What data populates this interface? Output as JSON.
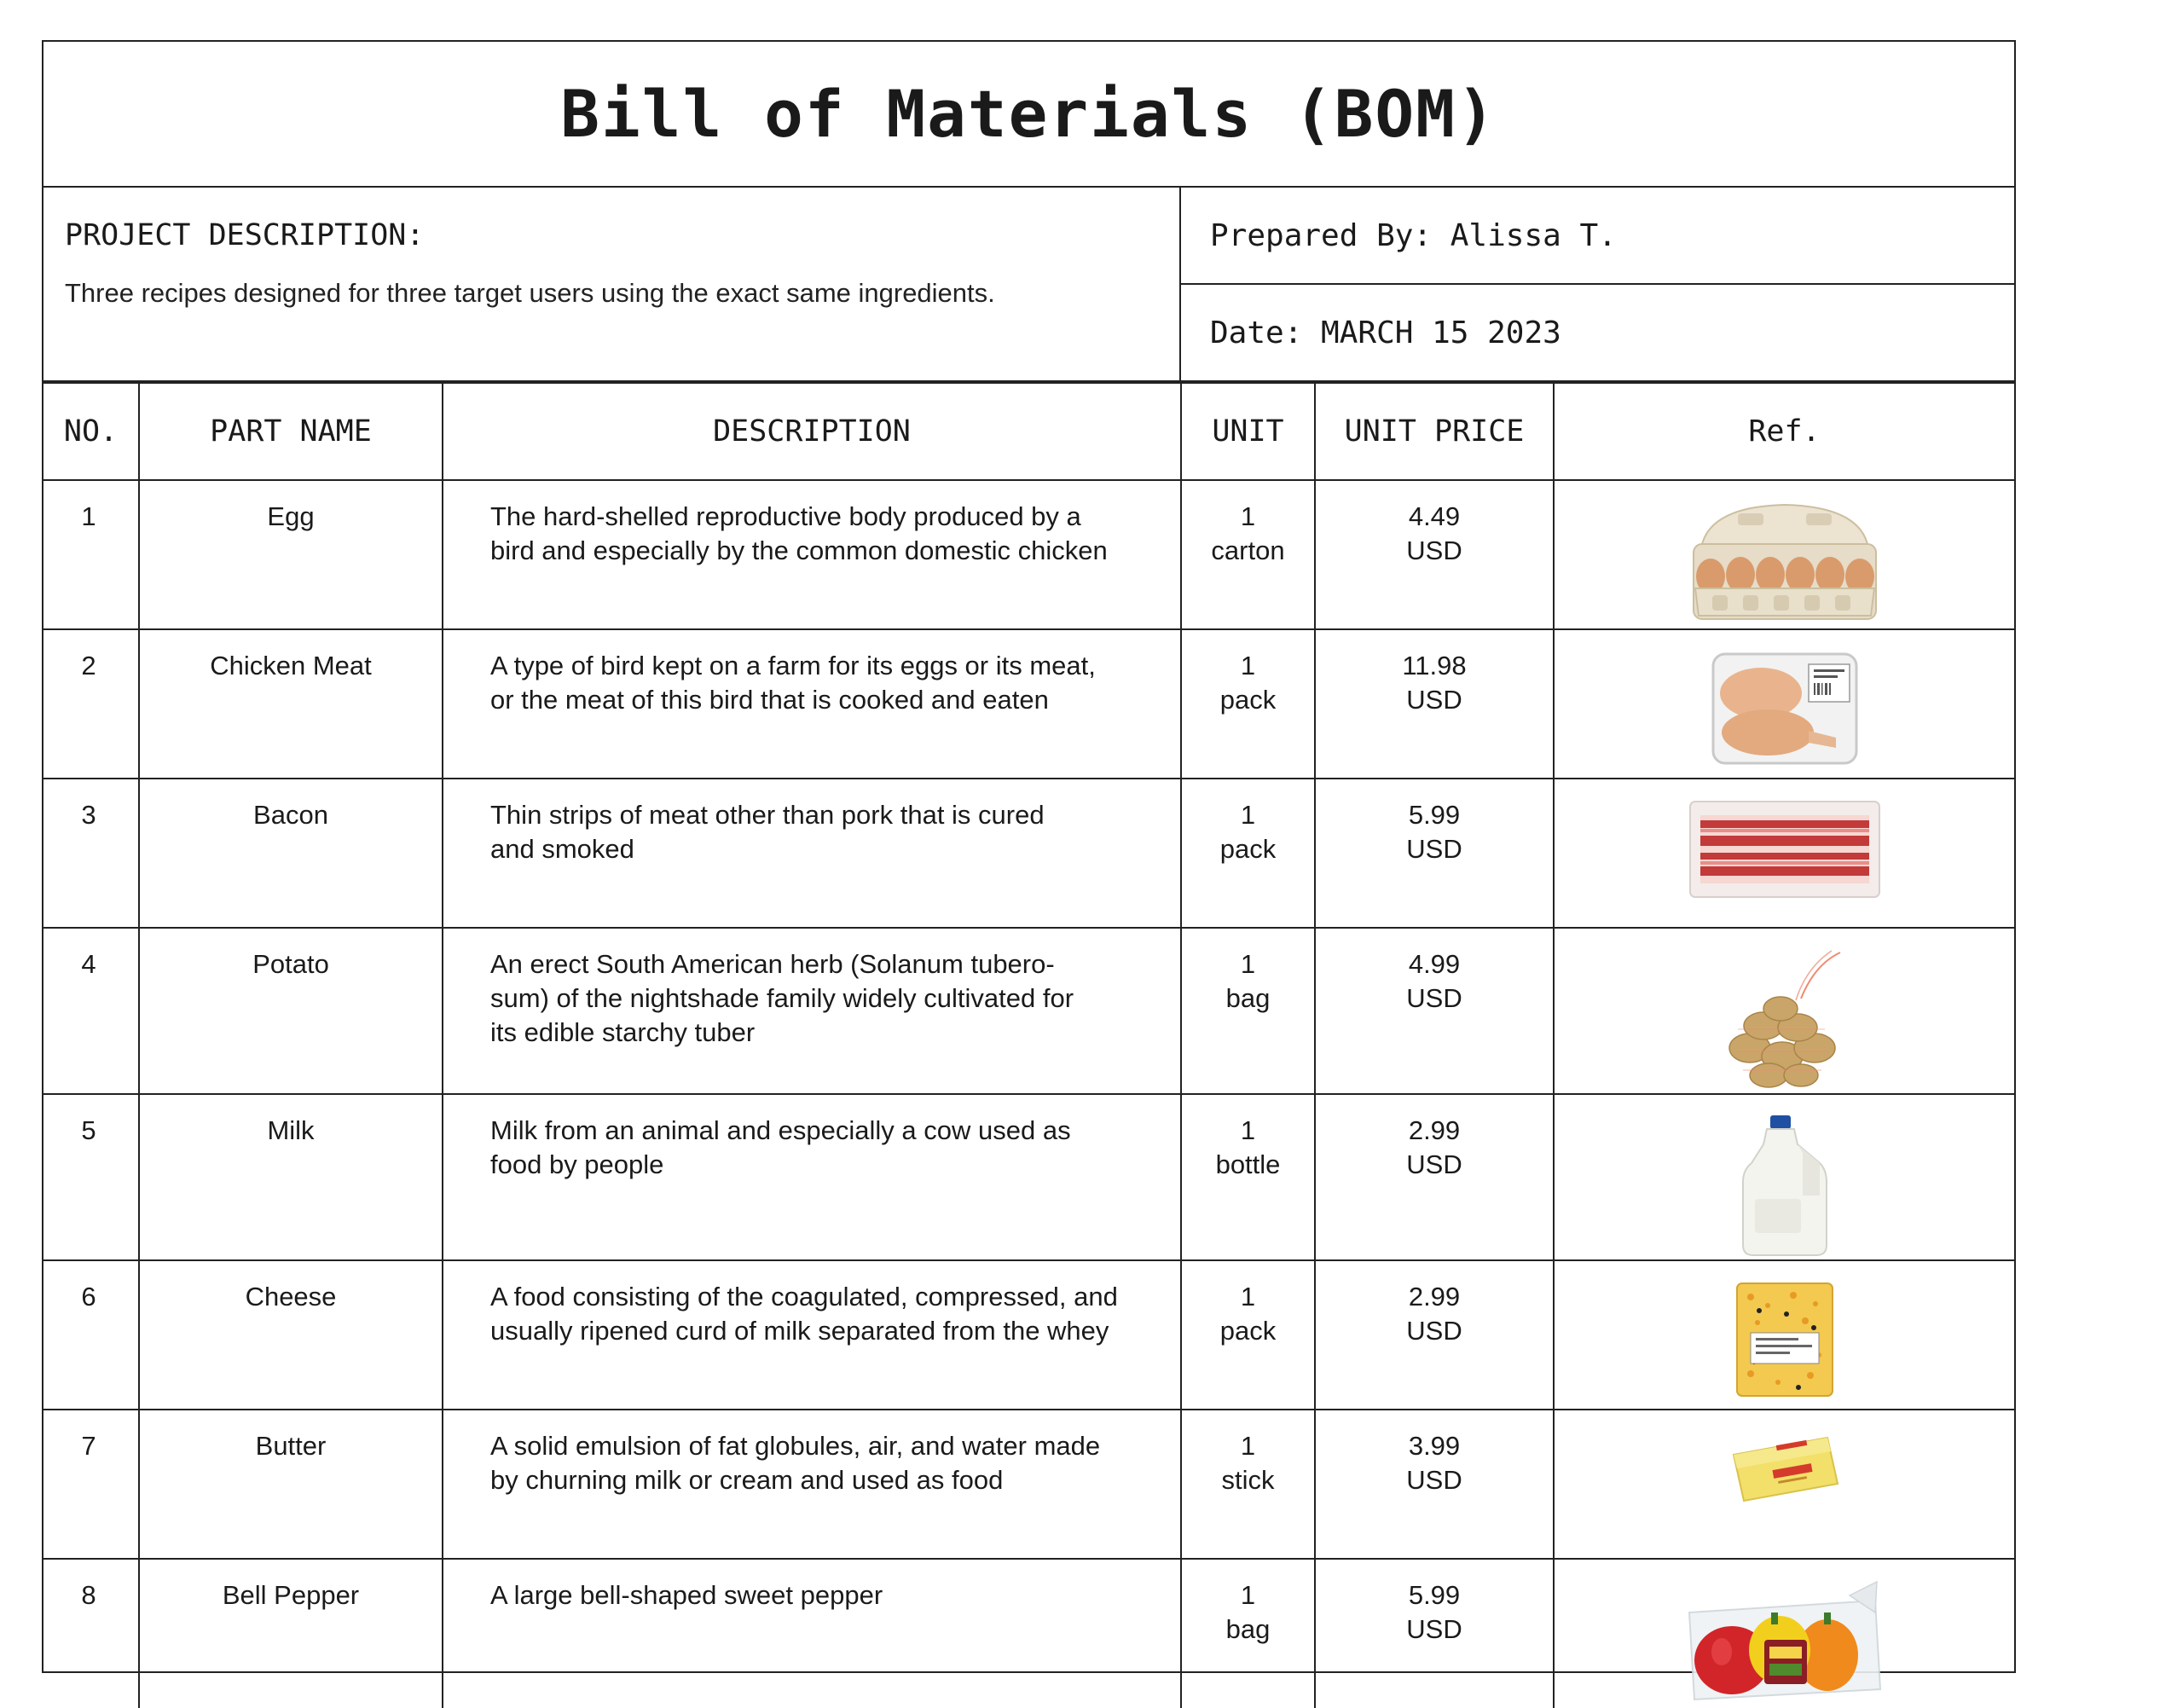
{
  "title": "Bill of Materials (BOM)",
  "project": {
    "label": "PROJECT DESCRIPTION:",
    "text": "Three recipes designed for three target users using the exact same ingredients."
  },
  "prepared_by": "Prepared By: Alissa T.",
  "date": "Date: MARCH 15 2023",
  "columns": {
    "no": "NO.",
    "part": "PART NAME",
    "desc": "DESCRIPTION",
    "unit": "UNIT",
    "price": "UNIT PRICE",
    "ref": "Ref."
  },
  "items": [
    {
      "no": "1",
      "part": "Egg",
      "desc": [
        "The hard-shelled reproductive body produced by a",
        "bird and especially by the common domestic chicken"
      ],
      "unit": [
        "1",
        "carton"
      ],
      "price": [
        "4.49",
        "USD"
      ],
      "icon": "egg-carton-icon"
    },
    {
      "no": "2",
      "part": "Chicken Meat",
      "desc": [
        "A type of bird kept on a farm for its eggs or its meat,",
        "or the meat of this bird that is cooked and eaten"
      ],
      "unit": [
        "1",
        "pack"
      ],
      "price": [
        "11.98",
        "USD"
      ],
      "icon": "chicken-meat-icon"
    },
    {
      "no": "3",
      "part": "Bacon",
      "desc": [
        "Thin strips of meat other than pork that is cured",
        "and smoked"
      ],
      "unit": [
        "1",
        "pack"
      ],
      "price": [
        "5.99",
        "USD"
      ],
      "icon": "bacon-icon"
    },
    {
      "no": "4",
      "part": "Potato",
      "desc": [
        "An erect South American herb (Solanum tubero-",
        "sum) of the nightshade family widely cultivated for",
        "its edible starchy tuber"
      ],
      "unit": [
        "1",
        "bag"
      ],
      "price": [
        "4.99",
        "USD"
      ],
      "icon": "potato-bag-icon"
    },
    {
      "no": "5",
      "part": "Milk",
      "desc": [
        "Milk from an animal and especially a cow used as",
        "food by people"
      ],
      "unit": [
        "1",
        "bottle"
      ],
      "price": [
        "2.99",
        "USD"
      ],
      "icon": "milk-bottle-icon"
    },
    {
      "no": "6",
      "part": "Cheese",
      "desc": [
        "A food consisting of the coagulated, compressed, and",
        "usually ripened curd of milk separated from the whey"
      ],
      "unit": [
        "1",
        "pack"
      ],
      "price": [
        "2.99",
        "USD"
      ],
      "icon": "cheese-pack-icon"
    },
    {
      "no": "7",
      "part": "Butter",
      "desc": [
        "A solid emulsion of fat globules, air, and water made",
        "by churning milk or cream and used as food"
      ],
      "unit": [
        "1",
        "stick"
      ],
      "price": [
        "3.99",
        "USD"
      ],
      "icon": "butter-stick-icon"
    },
    {
      "no": "8",
      "part": "Bell Pepper",
      "desc": [
        "A large bell-shaped sweet pepper"
      ],
      "unit": [
        "1",
        "bag"
      ],
      "price": [
        "5.99",
        "USD"
      ],
      "icon": "bell-pepper-bag-icon"
    }
  ]
}
